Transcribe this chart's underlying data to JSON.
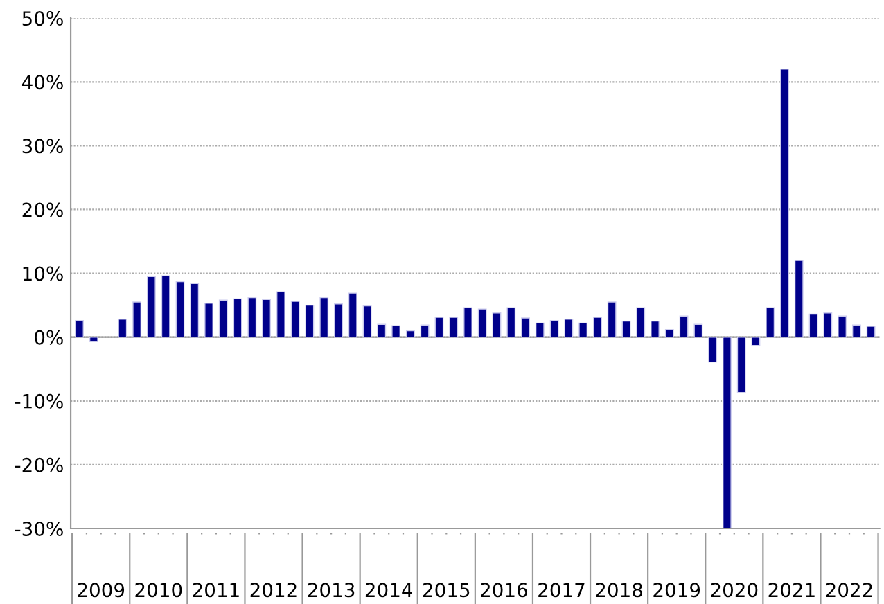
{
  "chart_data": {
    "type": "bar",
    "categories": [
      null,
      "2009",
      null,
      null,
      null,
      "2010",
      null,
      null,
      null,
      "2011",
      null,
      null,
      null,
      "2012",
      null,
      null,
      null,
      "2013",
      null,
      null,
      null,
      "2014",
      null,
      null,
      null,
      "2015",
      null,
      null,
      null,
      "2016",
      null,
      null,
      null,
      "2017",
      null,
      null,
      null,
      "2018",
      null,
      null,
      null,
      "2019",
      null,
      null,
      null,
      "2020",
      null,
      null,
      null,
      "2021",
      null,
      null,
      null,
      "2022",
      null,
      null
    ],
    "values": [
      2.6,
      -0.7,
      null,
      2.8,
      5.5,
      9.5,
      9.6,
      8.7,
      8.4,
      5.3,
      5.8,
      6.0,
      6.2,
      5.9,
      7.1,
      5.6,
      5.0,
      6.2,
      5.2,
      6.9,
      4.9,
      2.0,
      1.8,
      1.0,
      1.9,
      3.1,
      3.1,
      4.6,
      4.4,
      3.8,
      4.6,
      3.0,
      2.2,
      2.6,
      2.8,
      2.2,
      3.1,
      5.5,
      2.5,
      4.6,
      2.5,
      1.2,
      3.3,
      2.0,
      -3.9,
      -30,
      -8.7,
      -1.3,
      4.6,
      42.0,
      12.0,
      3.6,
      3.8,
      3.3,
      1.9,
      1.7
    ],
    "color": "#00008b",
    "ylim": [
      -30,
      50
    ],
    "yticks": [
      {
        "value": -30,
        "label": "-30%"
      },
      {
        "value": -20,
        "label": "-20%"
      },
      {
        "value": -10,
        "label": "-10%"
      },
      {
        "value": 0,
        "label": "0%"
      },
      {
        "value": 10,
        "label": "10%"
      },
      {
        "value": 20,
        "label": "20%"
      },
      {
        "value": 30,
        "label": "30%"
      },
      {
        "value": 40,
        "label": "40%"
      },
      {
        "value": 50,
        "label": "50%"
      }
    ],
    "grid": "y",
    "legend": false
  }
}
